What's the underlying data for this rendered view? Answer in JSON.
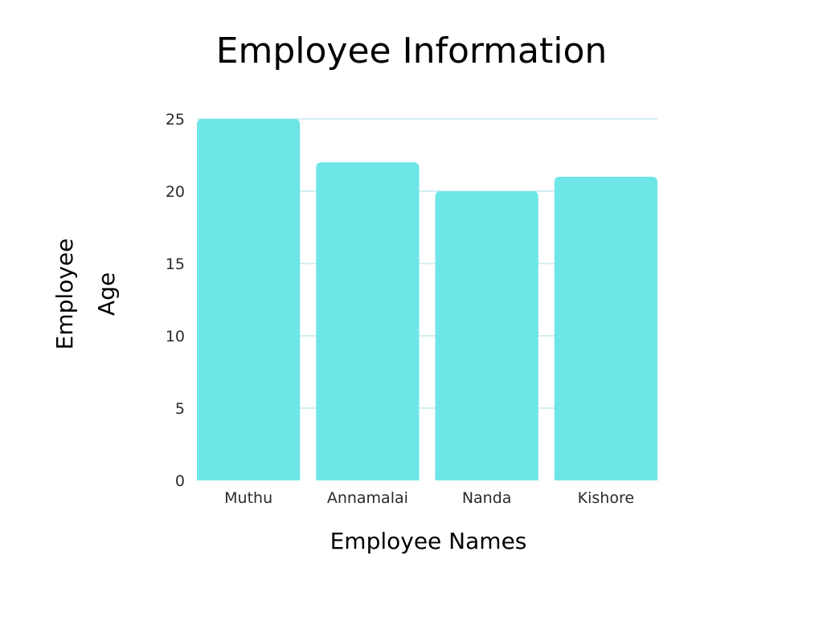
{
  "chart_data": {
    "type": "bar",
    "title": "Employee Information",
    "xlabel": "Employee Names",
    "ylabel_lines": [
      "Employee",
      "Age"
    ],
    "categories": [
      "Muthu",
      "Annamalai",
      "Nanda",
      "Kishore"
    ],
    "values": [
      25,
      22,
      20,
      21
    ],
    "ylim": [
      0,
      25
    ],
    "yticks": [
      0,
      5,
      10,
      15,
      20,
      25
    ],
    "grid": true,
    "legend": "none",
    "colors": {
      "bar": "#6ee6e8",
      "grid": "#a9dfe5",
      "text": "#1a1a1a"
    }
  }
}
